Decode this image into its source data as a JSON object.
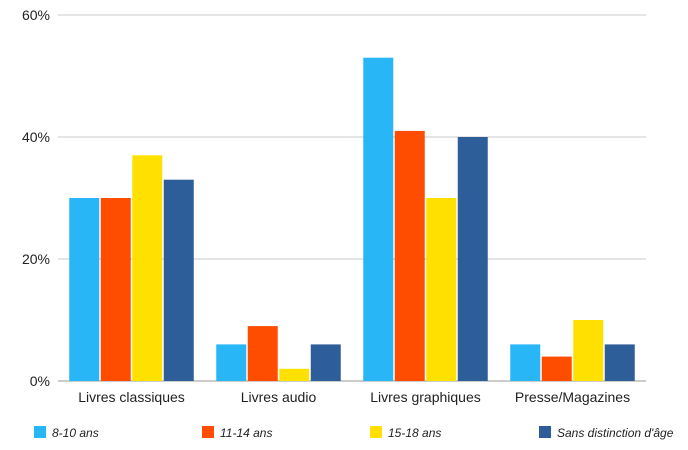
{
  "chart_data": {
    "type": "bar",
    "title": "",
    "xlabel": "",
    "ylabel": "",
    "categories": [
      "Livres classiques",
      "Livres audio",
      "Livres graphiques",
      "Presse/Magazines"
    ],
    "series": [
      {
        "name": "8-10 ans",
        "color": "#29b6f6",
        "values": [
          30,
          6,
          53,
          6
        ]
      },
      {
        "name": "11-14 ans",
        "color": "#ff4d00",
        "values": [
          30,
          9,
          41,
          4
        ]
      },
      {
        "name": "15-18 ans",
        "color": "#ffe000",
        "values": [
          37,
          2,
          30,
          10
        ]
      },
      {
        "name": "Sans distinction d'âge",
        "color": "#2e5e99",
        "values": [
          33,
          6,
          40,
          6
        ]
      }
    ],
    "ylim": [
      0,
      60
    ],
    "yticks": [
      0,
      20,
      40,
      60
    ],
    "ytick_labels": [
      "0%",
      "20%",
      "40%",
      "60%"
    ],
    "grid": true,
    "legend_position": "bottom"
  }
}
